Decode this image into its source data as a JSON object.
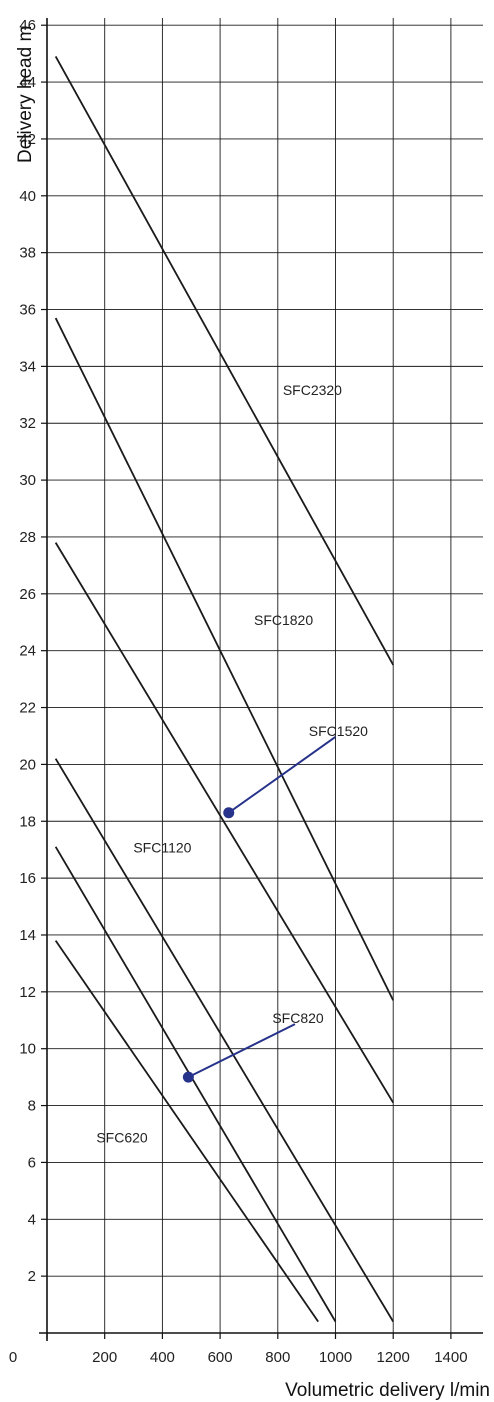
{
  "chart_data": {
    "type": "line",
    "title": "",
    "xlabel": "Volumetric delivery l/min",
    "ylabel": "Delivery head m",
    "xlim": [
      0,
      1400
    ],
    "ylim": [
      0,
      46
    ],
    "x_ticks": [
      0,
      200,
      400,
      600,
      800,
      1000,
      1200,
      1400
    ],
    "y_ticks": [
      2,
      4,
      6,
      8,
      10,
      12,
      14,
      16,
      18,
      20,
      22,
      24,
      26,
      28,
      30,
      32,
      34,
      36,
      38,
      40,
      42,
      44,
      46
    ],
    "grid": true,
    "series": [
      {
        "name": "SFC620",
        "x": [
          30,
          940
        ],
        "y": [
          13.8,
          0.4
        ]
      },
      {
        "name": "SFC820",
        "x": [
          30,
          1000
        ],
        "y": [
          17.1,
          0.4
        ]
      },
      {
        "name": "SFC1120",
        "x": [
          30,
          1200
        ],
        "y": [
          20.2,
          0.4
        ]
      },
      {
        "name": "SFC1520",
        "x": [
          30,
          1200
        ],
        "y": [
          27.8,
          8.1
        ]
      },
      {
        "name": "SFC1820",
        "x": [
          30,
          1200
        ],
        "y": [
          35.7,
          11.7
        ]
      },
      {
        "name": "SFC2320",
        "x": [
          30,
          1200
        ],
        "y": [
          44.9,
          23.5
        ]
      }
    ],
    "annotations": [
      {
        "text": "SFC2320",
        "x": 920,
        "y": 33.0
      },
      {
        "text": "SFC1820",
        "x": 820,
        "y": 24.9
      },
      {
        "text": "SFC1520",
        "x": 1010,
        "y": 21.0,
        "pointer": {
          "x": 630,
          "y": 18.3
        }
      },
      {
        "text": "SFC1120",
        "x": 400,
        "y": 16.9
      },
      {
        "text": "SFC820",
        "x": 870,
        "y": 10.9,
        "pointer": {
          "x": 490,
          "y": 9.0
        }
      },
      {
        "text": "SFC620",
        "x": 260,
        "y": 6.7
      }
    ],
    "colors": {
      "curve": "#1a1a1a",
      "grid": "#1a1a1a",
      "marker": "#27338a"
    }
  }
}
